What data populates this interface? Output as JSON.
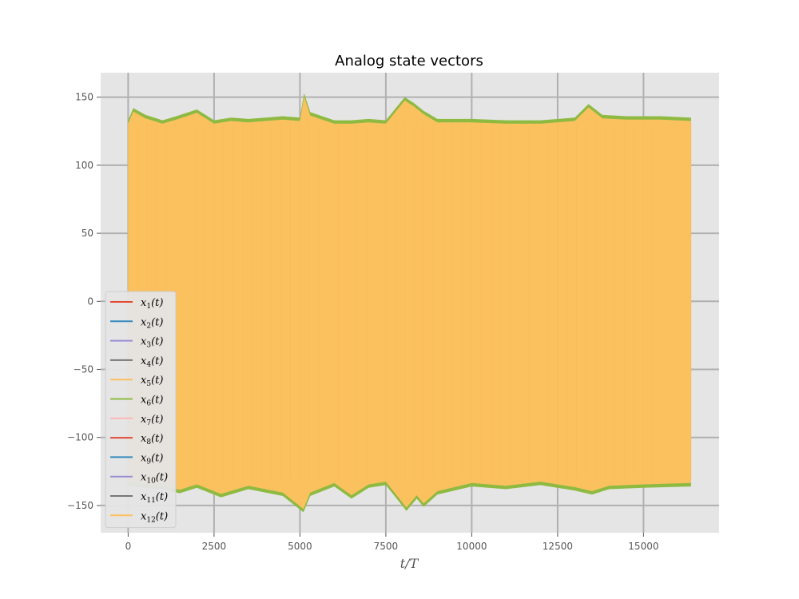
{
  "chart_data": {
    "type": "line",
    "title": "Analog state vectors",
    "xlabel": "t/T",
    "xlabel_var": "t",
    "xlabel_unit": "T",
    "ylabel": "",
    "xlim": [
      -800,
      17200
    ],
    "ylim": [
      -170,
      168
    ],
    "x_ticks": [
      0,
      2500,
      5000,
      7500,
      10000,
      12500,
      15000
    ],
    "x_tick_labels": [
      "0",
      "2500",
      "5000",
      "7500",
      "10000",
      "12500",
      "15000"
    ],
    "y_ticks": [
      150,
      100,
      50,
      0,
      -50,
      -100,
      -150
    ],
    "y_tick_labels": [
      "150",
      "100",
      "50",
      "0",
      "−50",
      "−100",
      "−150"
    ],
    "grid": true,
    "legend_position": "lower-left",
    "x_range": [
      0,
      16384
    ],
    "series": [
      {
        "name": "x1(t)",
        "var": "x",
        "sub": "1",
        "arg": "(t)",
        "color": "#E24A33"
      },
      {
        "name": "x2(t)",
        "var": "x",
        "sub": "2",
        "arg": "(t)",
        "color": "#348ABD"
      },
      {
        "name": "x3(t)",
        "var": "x",
        "sub": "3",
        "arg": "(t)",
        "color": "#988ED5"
      },
      {
        "name": "x4(t)",
        "var": "x",
        "sub": "4",
        "arg": "(t)",
        "color": "#777777"
      },
      {
        "name": "x5(t)",
        "var": "x",
        "sub": "5",
        "arg": "(t)",
        "color": "#FBC15E"
      },
      {
        "name": "x6(t)",
        "var": "x",
        "sub": "6",
        "arg": "(t)",
        "color": "#8EBA42"
      },
      {
        "name": "x7(t)",
        "var": "x",
        "sub": "7",
        "arg": "(t)",
        "color": "#FFB5B8"
      },
      {
        "name": "x8(t)",
        "var": "x",
        "sub": "8",
        "arg": "(t)",
        "color": "#E24A33"
      },
      {
        "name": "x9(t)",
        "var": "x",
        "sub": "9",
        "arg": "(t)",
        "color": "#348ABD"
      },
      {
        "name": "x10(t)",
        "var": "x",
        "sub": "10",
        "arg": "(t)",
        "color": "#988ED5"
      },
      {
        "name": "x11(t)",
        "var": "x",
        "sub": "11",
        "arg": "(t)",
        "color": "#777777"
      },
      {
        "name": "x12(t)",
        "var": "x",
        "sub": "12",
        "arg": "(t)",
        "color": "#FBC15E"
      }
    ],
    "envelope_upper": [
      [
        0,
        133
      ],
      [
        150,
        142
      ],
      [
        500,
        137
      ],
      [
        1000,
        133
      ],
      [
        1400,
        136
      ],
      [
        2000,
        141
      ],
      [
        2500,
        133
      ],
      [
        3000,
        135
      ],
      [
        3500,
        134
      ],
      [
        4000,
        135
      ],
      [
        4500,
        136
      ],
      [
        5000,
        135
      ],
      [
        5120,
        153
      ],
      [
        5300,
        139
      ],
      [
        6000,
        133
      ],
      [
        6500,
        133
      ],
      [
        7000,
        134
      ],
      [
        7500,
        133
      ],
      [
        8050,
        150
      ],
      [
        8300,
        146
      ],
      [
        8600,
        140
      ],
      [
        9000,
        134
      ],
      [
        10000,
        134
      ],
      [
        11000,
        133
      ],
      [
        12000,
        133
      ],
      [
        13000,
        135
      ],
      [
        13400,
        145
      ],
      [
        13800,
        137
      ],
      [
        14500,
        136
      ],
      [
        15500,
        136
      ],
      [
        16384,
        135
      ]
    ],
    "envelope_lower": [
      [
        0,
        -135
      ],
      [
        500,
        -137
      ],
      [
        1000,
        -138
      ],
      [
        1500,
        -141
      ],
      [
        2000,
        -137
      ],
      [
        2700,
        -144
      ],
      [
        3500,
        -138
      ],
      [
        4500,
        -143
      ],
      [
        5100,
        -155
      ],
      [
        5300,
        -143
      ],
      [
        6000,
        -136
      ],
      [
        6500,
        -145
      ],
      [
        7000,
        -137
      ],
      [
        7500,
        -135
      ],
      [
        8100,
        -154
      ],
      [
        8400,
        -145
      ],
      [
        8600,
        -151
      ],
      [
        9000,
        -142
      ],
      [
        10000,
        -136
      ],
      [
        11000,
        -138
      ],
      [
        12000,
        -135
      ],
      [
        13000,
        -139
      ],
      [
        13500,
        -142
      ],
      [
        14000,
        -138
      ],
      [
        15000,
        -137
      ],
      [
        16384,
        -136
      ]
    ],
    "envelope_color": "#8EBA42",
    "fill_color": "#FBC15E"
  }
}
